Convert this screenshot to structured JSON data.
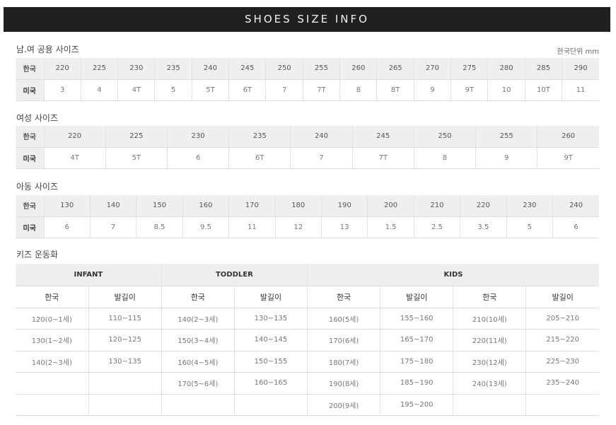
{
  "title": "SHOES SIZE INFO",
  "unisex": {
    "title": "남.여 공용 사이즈",
    "unit": "한국단위 mm",
    "row_labels": [
      "한국",
      "미국"
    ],
    "kr": [
      "220",
      "225",
      "230",
      "235",
      "240",
      "245",
      "250",
      "255",
      "260",
      "265",
      "270",
      "275",
      "280",
      "285",
      "290"
    ],
    "us": [
      "3",
      "4",
      "4T",
      "5",
      "5T",
      "6T",
      "7",
      "7T",
      "8",
      "8T",
      "9",
      "9T",
      "10",
      "10T",
      "11"
    ]
  },
  "women": {
    "title": "여성 사이즈",
    "row_labels": [
      "한국",
      "미국"
    ],
    "kr": [
      "220",
      "225",
      "230",
      "235",
      "240",
      "245",
      "250",
      "255",
      "260"
    ],
    "us": [
      "4T",
      "5T",
      "6",
      "6T",
      "7",
      "7T",
      "8",
      "9",
      "9T"
    ]
  },
  "children": {
    "title": "아동 사이즈",
    "row_labels": [
      "한국",
      "미국"
    ],
    "kr": [
      "130",
      "140",
      "150",
      "160",
      "170",
      "180",
      "190",
      "200",
      "210",
      "220",
      "230",
      "240"
    ],
    "us": [
      "6",
      "7",
      "8.5",
      "9.5",
      "11",
      "12",
      "13",
      "1.5",
      "2.5",
      "3.5",
      "5",
      "6"
    ]
  },
  "kids_shoes": {
    "title": "키즈 운동화",
    "groups": [
      {
        "label": "INFANT",
        "span": 2
      },
      {
        "label": "TODDLER",
        "span": 2
      },
      {
        "label": "KIDS",
        "span": 4
      }
    ],
    "subheaders": [
      "한국",
      "발길이",
      "한국",
      "발길이",
      "한국",
      "발길이",
      "한국",
      "발길이"
    ],
    "rows": [
      [
        "120(0~1세)",
        "110~115",
        "140(2~3세)",
        "130~135",
        "160(5세)",
        "155~160",
        "210(10세)",
        "205~210"
      ],
      [
        "130(1~2세)",
        "120~125",
        "150(3~4세)",
        "140~145",
        "170(6세)",
        "165~170",
        "220(11세)",
        "215~220"
      ],
      [
        "140(2~3세)",
        "130~135",
        "160(4~5세)",
        "150~155",
        "180(7세)",
        "175~180",
        "230(12세)",
        "225~230"
      ],
      [
        "",
        "",
        "170(5~6세)",
        "160~165",
        "190(8세)",
        "185~190",
        "240(13세)",
        "235~240"
      ],
      [
        "",
        "",
        "",
        "",
        "200(9세)",
        "195~200",
        "",
        ""
      ]
    ]
  }
}
